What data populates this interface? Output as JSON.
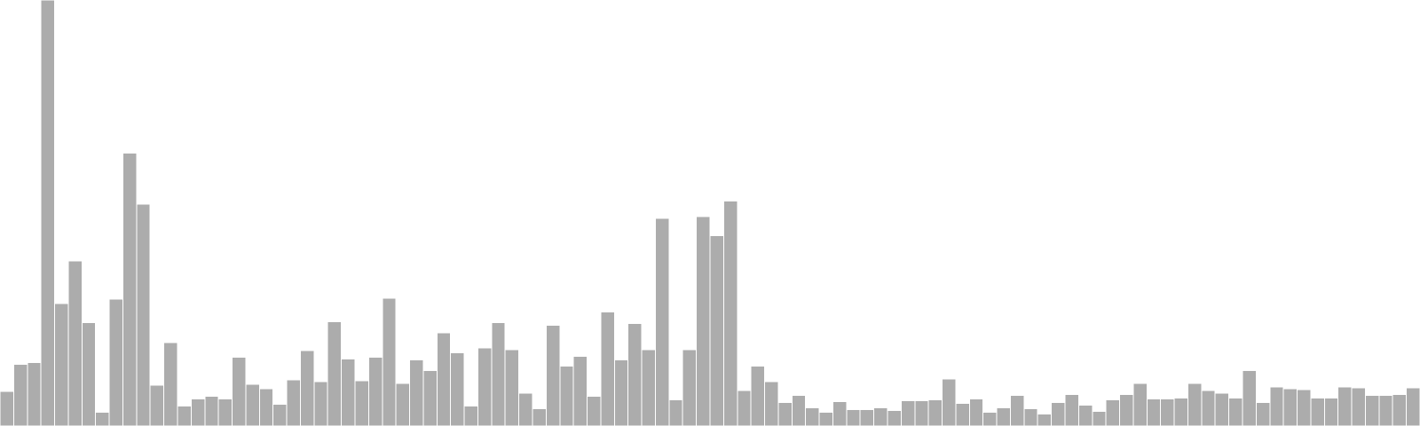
{
  "chart_data": {
    "type": "bar",
    "title": "",
    "xlabel": "",
    "ylabel": "",
    "ylim": [
      0,
      470
    ],
    "grid": false,
    "bar_color": "#acacac",
    "values": [
      38,
      68,
      70,
      470,
      135,
      182,
      114,
      15,
      140,
      301,
      245,
      45,
      92,
      22,
      30,
      33,
      30,
      76,
      46,
      41,
      24,
      51,
      83,
      49,
      115,
      74,
      50,
      76,
      141,
      47,
      73,
      61,
      103,
      81,
      22,
      86,
      114,
      84,
      36,
      19,
      111,
      66,
      77,
      33,
      126,
      73,
      113,
      84,
      229,
      29,
      84,
      231,
      210,
      248,
      39,
      66,
      49,
      26,
      34,
      20,
      15,
      27,
      18,
      18,
      20,
      17,
      28,
      28,
      29,
      52,
      25,
      30,
      15,
      20,
      34,
      19,
      13,
      26,
      35,
      23,
      16,
      29,
      35,
      47,
      30,
      30,
      31,
      47,
      39,
      36,
      31,
      61,
      26,
      43,
      41,
      40,
      31,
      31,
      43,
      42,
      34,
      34,
      35,
      42
    ]
  }
}
